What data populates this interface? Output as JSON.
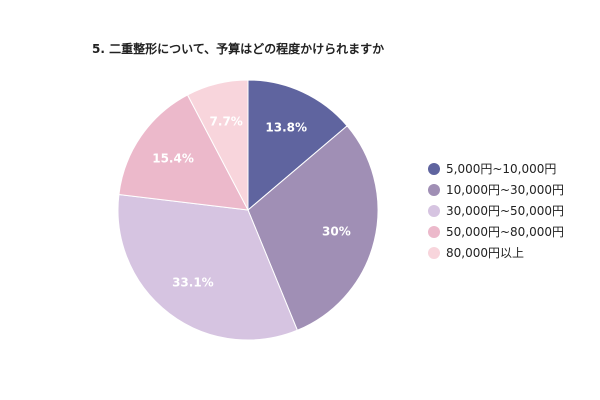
{
  "chart_data": {
    "type": "pie",
    "title": "5. 二重整形について、予算はどの程度かけられますか",
    "categories": [
      "5,000円~10,000円",
      "10,000円~30,000円",
      "30,000円~50,000円",
      "50,000円~80,000円",
      "80,000円以上"
    ],
    "values": [
      13.8,
      30,
      33.1,
      15.4,
      7.7
    ],
    "value_labels": [
      "13.8%",
      "30%",
      "33.1%",
      "15.4%",
      "7.7%"
    ],
    "colors": [
      "#5f649f",
      "#a08fb5",
      "#d6c4e1",
      "#ecb9cb",
      "#f8d5dc"
    ],
    "legend_position": "right"
  }
}
